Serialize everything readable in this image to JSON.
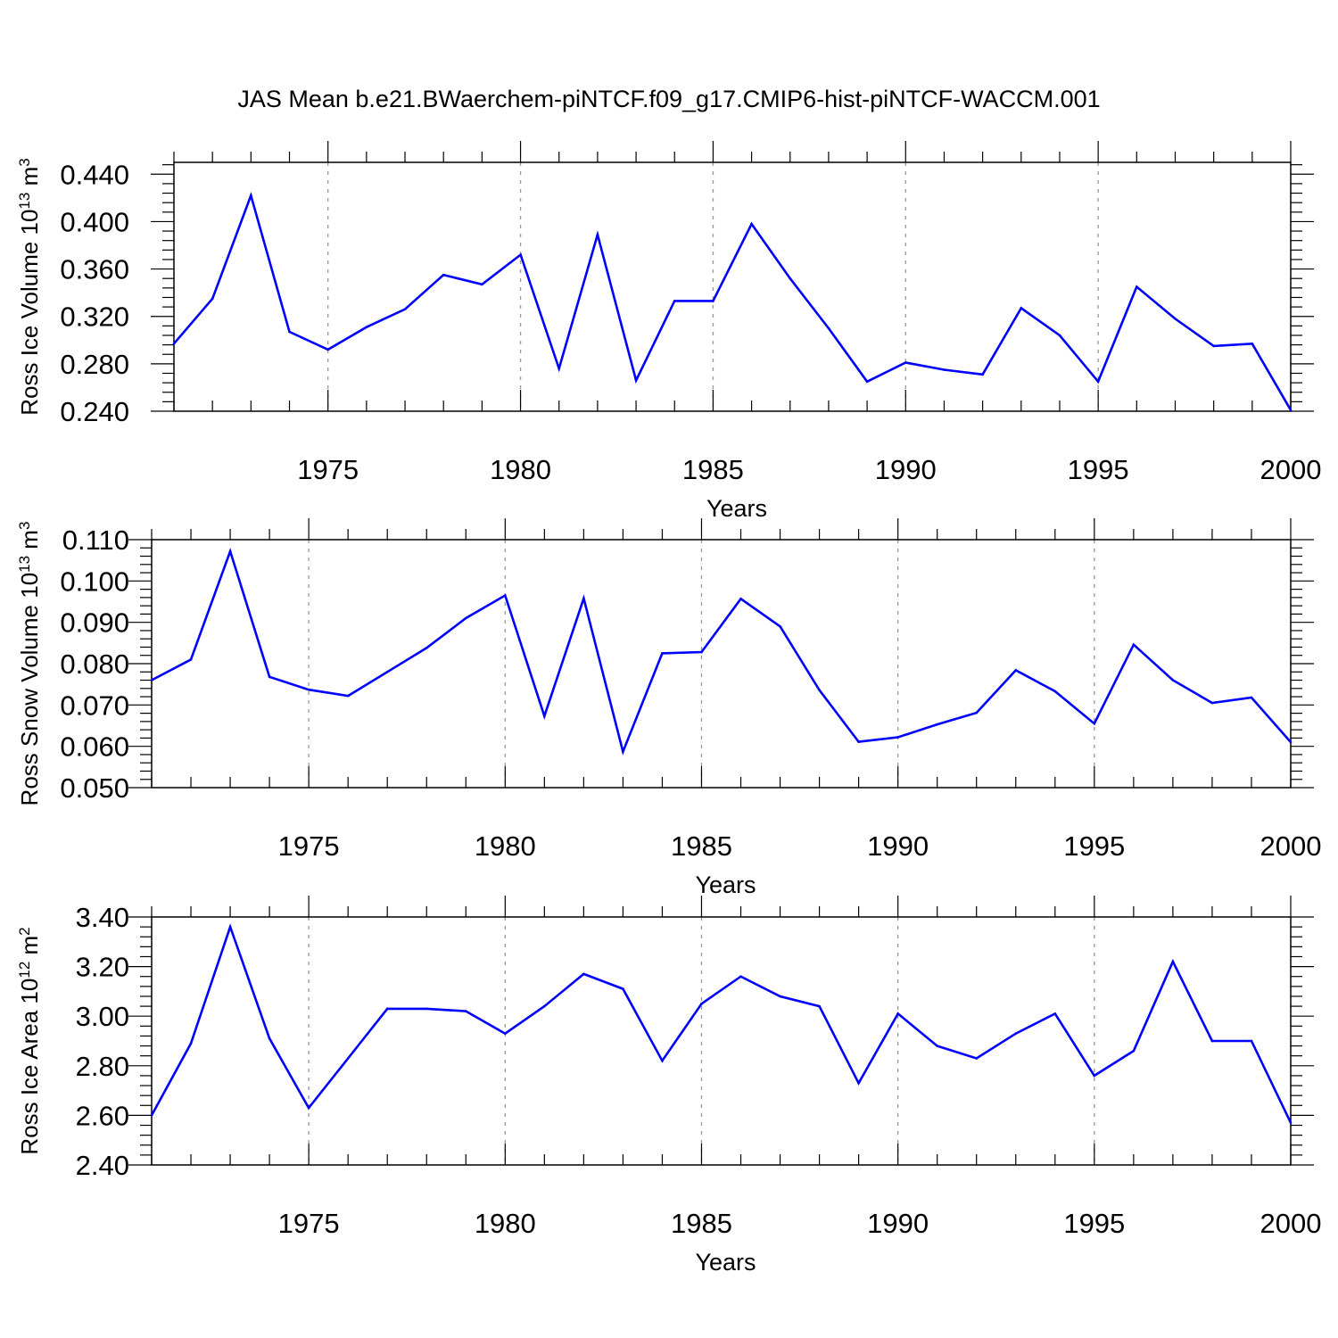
{
  "title": "JAS Mean b.e21.BWaerchem-piNTCF.f09_g17.CMIP6-hist-piNTCF-WACCM.001",
  "colors": {
    "series": "#0000ff",
    "axis": "#000000",
    "grid": "#999999",
    "background": "#ffffff"
  },
  "chart_data": [
    {
      "type": "line",
      "title": "JAS Mean b.e21.BWaerchem-piNTCF.f09_g17.CMIP6-hist-piNTCF-WACCM.001",
      "xlabel": "Years",
      "ylabel": "Ross Ice Volume 10",
      "ylabel_exp": "13",
      "ylabel_unit": " m",
      "ylabel_unit_exp": "3",
      "xlim": [
        1971,
        2000
      ],
      "ylim": [
        0.24,
        0.45
      ],
      "ytick_values": [
        0.24,
        0.28,
        0.32,
        0.36,
        0.4,
        0.44
      ],
      "ytick_labels": [
        "0.240",
        "0.280",
        "0.320",
        "0.360",
        "0.400",
        "0.440"
      ],
      "xtick_values": [
        1975,
        1980,
        1985,
        1990,
        1995,
        2000
      ],
      "xtick_labels": [
        "1975",
        "1980",
        "1985",
        "1990",
        "1995",
        "2000"
      ],
      "grid": "vertical dashed at labeled years",
      "x": [
        1971,
        1972,
        1973,
        1974,
        1975,
        1976,
        1977,
        1978,
        1979,
        1980,
        1981,
        1982,
        1983,
        1984,
        1985,
        1986,
        1987,
        1988,
        1989,
        1990,
        1991,
        1992,
        1993,
        1994,
        1995,
        1996,
        1997,
        1998,
        1999,
        2000
      ],
      "values": [
        0.297,
        0.335,
        0.422,
        0.307,
        0.292,
        0.311,
        0.326,
        0.355,
        0.347,
        0.372,
        0.276,
        0.389,
        0.266,
        0.333,
        0.333,
        0.398,
        0.352,
        0.31,
        0.265,
        0.281,
        0.275,
        0.271,
        0.327,
        0.304,
        0.265,
        0.345,
        0.318,
        0.295,
        0.297,
        0.241
      ]
    },
    {
      "type": "line",
      "xlabel": "Years",
      "ylabel": "Ross Snow Volume 10",
      "ylabel_exp": "13",
      "ylabel_unit": " m",
      "ylabel_unit_exp": "3",
      "xlim": [
        1971,
        2000
      ],
      "ylim": [
        0.05,
        0.11
      ],
      "ytick_values": [
        0.05,
        0.06,
        0.07,
        0.08,
        0.09,
        0.1,
        0.11
      ],
      "ytick_labels": [
        "0.050",
        "0.060",
        "0.070",
        "0.080",
        "0.090",
        "0.100",
        "0.110"
      ],
      "xtick_values": [
        1975,
        1980,
        1985,
        1990,
        1995,
        2000
      ],
      "xtick_labels": [
        "1975",
        "1980",
        "1985",
        "1990",
        "1995",
        "2000"
      ],
      "grid": "vertical dashed at labeled years",
      "x": [
        1971,
        1972,
        1973,
        1974,
        1975,
        1976,
        1977,
        1978,
        1979,
        1980,
        1981,
        1982,
        1983,
        1984,
        1985,
        1986,
        1987,
        1988,
        1989,
        1990,
        1991,
        1992,
        1993,
        1994,
        1995,
        1996,
        1997,
        1998,
        1999,
        2000
      ],
      "values": [
        0.076,
        0.081,
        0.1072,
        0.0768,
        0.0737,
        0.0722,
        0.078,
        0.0838,
        0.091,
        0.0965,
        0.0673,
        0.0958,
        0.0587,
        0.0825,
        0.0828,
        0.0957,
        0.089,
        0.0736,
        0.0611,
        0.0622,
        0.0653,
        0.0681,
        0.0784,
        0.0733,
        0.0655,
        0.0846,
        0.076,
        0.0705,
        0.0718,
        0.061
      ]
    },
    {
      "type": "line",
      "xlabel": "Years",
      "ylabel": "Ross Ice Area 10",
      "ylabel_exp": "12",
      "ylabel_unit": " m",
      "ylabel_unit_exp": "2",
      "xlim": [
        1971,
        2000
      ],
      "ylim": [
        2.4,
        3.4
      ],
      "ytick_values": [
        2.4,
        2.6,
        2.8,
        3.0,
        3.2,
        3.4
      ],
      "ytick_labels": [
        "2.40",
        "2.60",
        "2.80",
        "3.00",
        "3.20",
        "3.40"
      ],
      "xtick_values": [
        1975,
        1980,
        1985,
        1990,
        1995,
        2000
      ],
      "xtick_labels": [
        "1975",
        "1980",
        "1985",
        "1990",
        "1995",
        "2000"
      ],
      "grid": "vertical dashed at labeled years",
      "x": [
        1971,
        1972,
        1973,
        1974,
        1975,
        1976,
        1977,
        1978,
        1979,
        1980,
        1981,
        1982,
        1983,
        1984,
        1985,
        1986,
        1987,
        1988,
        1989,
        1990,
        1991,
        1992,
        1993,
        1994,
        1995,
        1996,
        1997,
        1998,
        1999,
        2000
      ],
      "values": [
        2.6,
        2.89,
        3.36,
        2.91,
        2.63,
        2.83,
        3.03,
        3.03,
        3.02,
        2.93,
        3.04,
        3.17,
        3.11,
        2.82,
        3.05,
        3.16,
        3.08,
        3.04,
        2.73,
        3.01,
        2.88,
        2.83,
        2.93,
        3.01,
        2.76,
        2.86,
        3.22,
        2.9,
        2.9,
        2.57
      ]
    }
  ]
}
